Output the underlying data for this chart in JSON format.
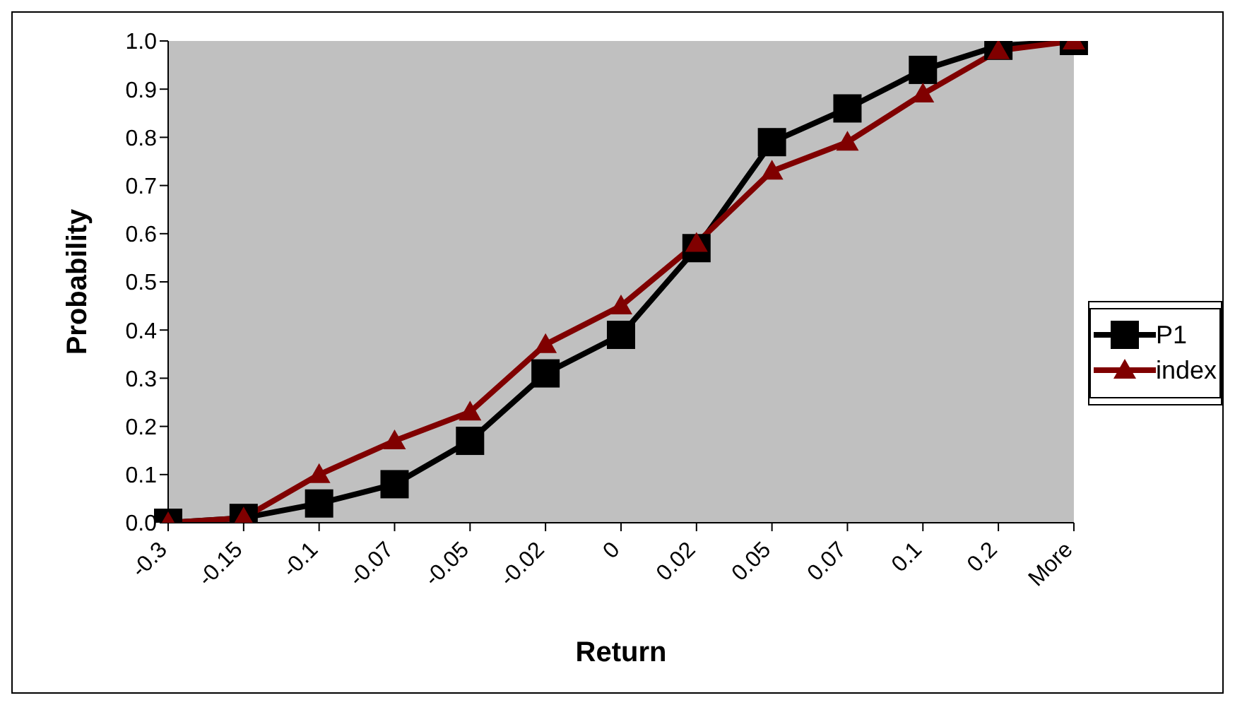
{
  "chart_data": {
    "type": "line",
    "xlabel": "Return",
    "ylabel": "Probability",
    "categories": [
      "-0.3",
      "-0.15",
      "-0.1",
      "-0.07",
      "-0.05",
      "-0.02",
      "0",
      "0.02",
      "0.05",
      "0.07",
      "0.1",
      "0.2",
      "More"
    ],
    "series": [
      {
        "name": "P1",
        "color": "#000000",
        "marker": "square",
        "values": [
          0.0,
          0.01,
          0.04,
          0.08,
          0.17,
          0.31,
          0.39,
          0.57,
          0.79,
          0.86,
          0.94,
          0.99,
          1.0
        ]
      },
      {
        "name": "index",
        "color": "#800000",
        "marker": "triangle",
        "values": [
          0.0,
          0.01,
          0.1,
          0.17,
          0.23,
          0.37,
          0.45,
          0.58,
          0.73,
          0.79,
          0.89,
          0.98,
          1.0
        ]
      }
    ],
    "ylim": [
      0,
      1
    ],
    "yticks": [
      {
        "value": 0,
        "label": "0.0"
      },
      0.1,
      0.2,
      0.3,
      0.4,
      0.5,
      0.6,
      0.7,
      0.8,
      0.9,
      {
        "value": 1,
        "label": "1.0"
      }
    ],
    "legend": "right",
    "line_style": "solid"
  }
}
